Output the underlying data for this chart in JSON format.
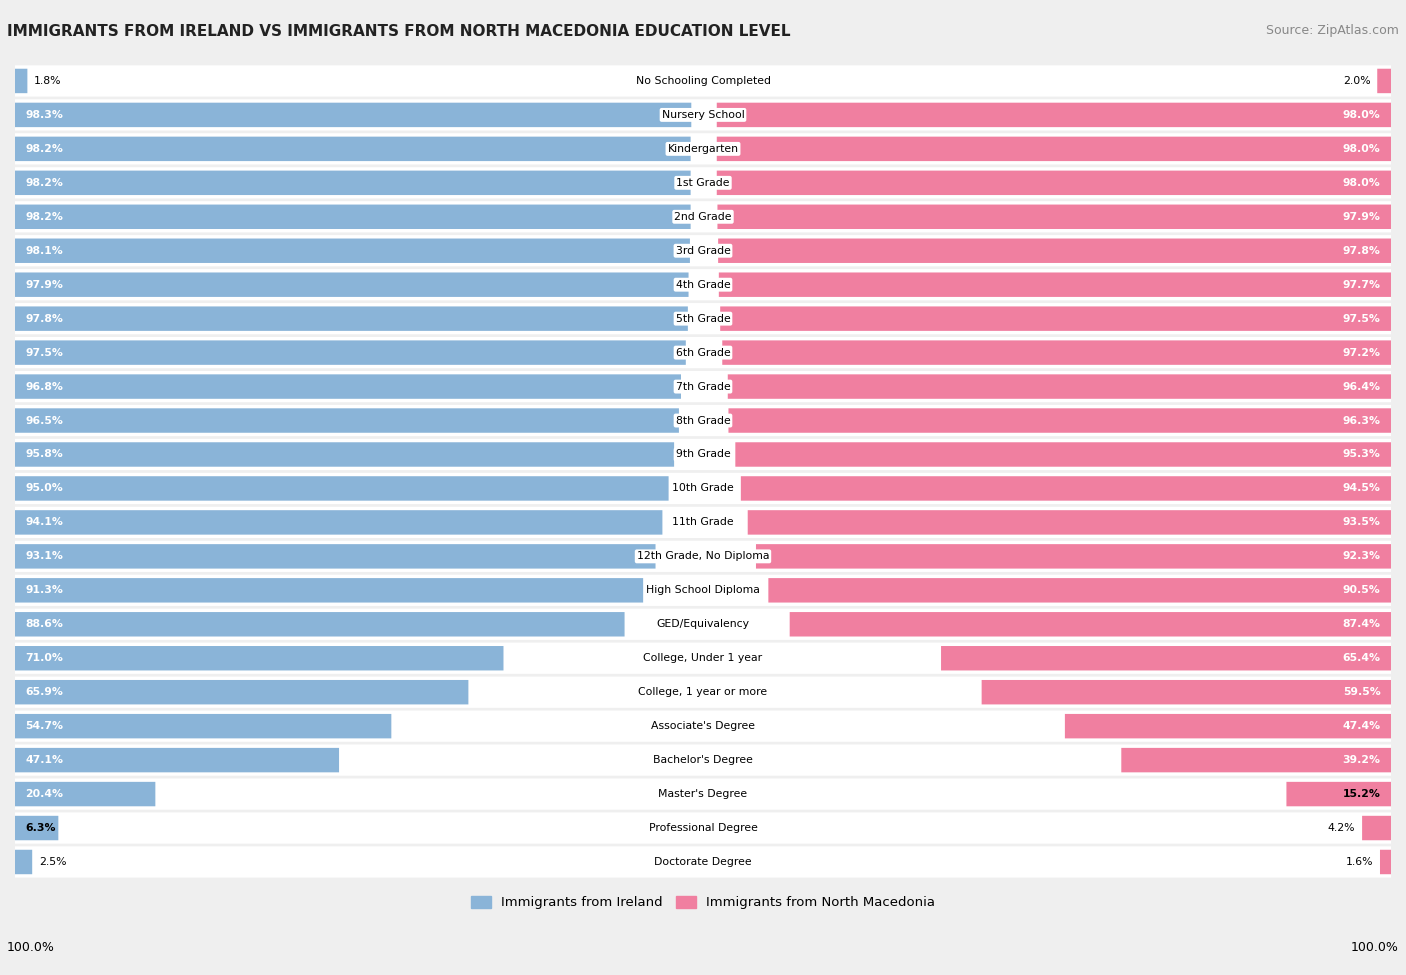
{
  "title": "IMMIGRANTS FROM IRELAND VS IMMIGRANTS FROM NORTH MACEDONIA EDUCATION LEVEL",
  "source": "Source: ZipAtlas.com",
  "categories": [
    "No Schooling Completed",
    "Nursery School",
    "Kindergarten",
    "1st Grade",
    "2nd Grade",
    "3rd Grade",
    "4th Grade",
    "5th Grade",
    "6th Grade",
    "7th Grade",
    "8th Grade",
    "9th Grade",
    "10th Grade",
    "11th Grade",
    "12th Grade, No Diploma",
    "High School Diploma",
    "GED/Equivalency",
    "College, Under 1 year",
    "College, 1 year or more",
    "Associate's Degree",
    "Bachelor's Degree",
    "Master's Degree",
    "Professional Degree",
    "Doctorate Degree"
  ],
  "ireland_values": [
    1.8,
    98.3,
    98.2,
    98.2,
    98.2,
    98.1,
    97.9,
    97.8,
    97.5,
    96.8,
    96.5,
    95.8,
    95.0,
    94.1,
    93.1,
    91.3,
    88.6,
    71.0,
    65.9,
    54.7,
    47.1,
    20.4,
    6.3,
    2.5
  ],
  "macedonia_values": [
    2.0,
    98.0,
    98.0,
    98.0,
    97.9,
    97.8,
    97.7,
    97.5,
    97.2,
    96.4,
    96.3,
    95.3,
    94.5,
    93.5,
    92.3,
    90.5,
    87.4,
    65.4,
    59.5,
    47.4,
    39.2,
    15.2,
    4.2,
    1.6
  ],
  "ireland_color": "#8ab4d8",
  "macedonia_color": "#f07fa0",
  "row_bg_color": "#ffffff",
  "background_color": "#efefef",
  "legend_ireland": "Immigrants from Ireland",
  "legend_macedonia": "Immigrants from North Macedonia",
  "axis_label_left": "100.0%",
  "axis_label_right": "100.0%"
}
